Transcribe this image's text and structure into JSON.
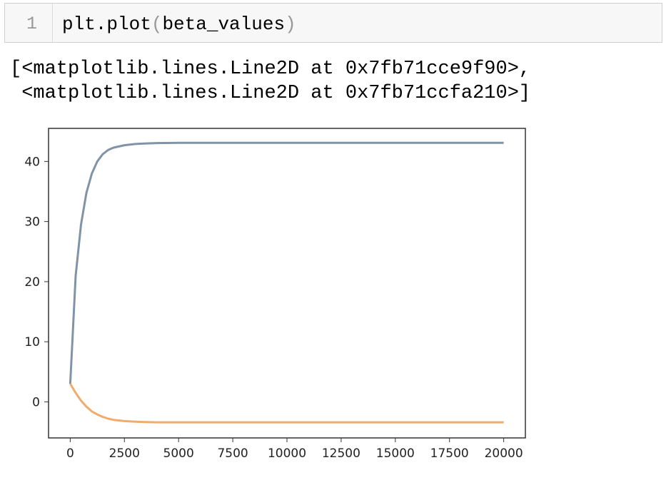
{
  "cell": {
    "line_number": "1",
    "code_prefix": "plt.plot",
    "code_open": "(",
    "code_arg": "beta_values",
    "code_close": ")"
  },
  "output": {
    "lines": [
      "[<matplotlib.lines.Line2D at 0x7fb71cce9f90>,",
      " <matplotlib.lines.Line2D at 0x7fb71ccfa210>]"
    ]
  },
  "chart_data": {
    "type": "line",
    "title": "",
    "xlabel": "",
    "ylabel": "",
    "xlim": [
      -1000,
      21000
    ],
    "ylim": [
      -6,
      45.5
    ],
    "xticks": [
      0,
      2500,
      5000,
      7500,
      10000,
      12500,
      15000,
      17500,
      20000
    ],
    "xtick_labels": [
      "0",
      "2500",
      "5000",
      "7500",
      "10000",
      "12500",
      "15000",
      "17500",
      "20000"
    ],
    "yticks": [
      0,
      10,
      20,
      30,
      40
    ],
    "ytick_labels": [
      "0",
      "10",
      "20",
      "30",
      "40"
    ],
    "grid": false,
    "series": [
      {
        "color": "#8193a6",
        "x": [
          0,
          250,
          500,
          750,
          1000,
          1250,
          1500,
          1750,
          2000,
          2500,
          3000,
          3500,
          4000,
          5000,
          7500,
          10000,
          15000,
          20000
        ],
        "y": [
          3.0,
          21.0,
          29.5,
          34.8,
          38.0,
          40.0,
          41.2,
          41.9,
          42.3,
          42.7,
          42.9,
          43.0,
          43.05,
          43.1,
          43.1,
          43.1,
          43.1,
          43.1
        ]
      },
      {
        "color": "#f0ab6d",
        "x": [
          0,
          250,
          500,
          750,
          1000,
          1250,
          1500,
          1750,
          2000,
          2500,
          3000,
          3500,
          4000,
          5000,
          7500,
          10000,
          15000,
          20000
        ],
        "y": [
          3.0,
          1.5,
          0.2,
          -0.8,
          -1.6,
          -2.1,
          -2.5,
          -2.8,
          -3.0,
          -3.2,
          -3.3,
          -3.35,
          -3.4,
          -3.4,
          -3.4,
          -3.4,
          -3.4,
          -3.4
        ]
      }
    ]
  }
}
